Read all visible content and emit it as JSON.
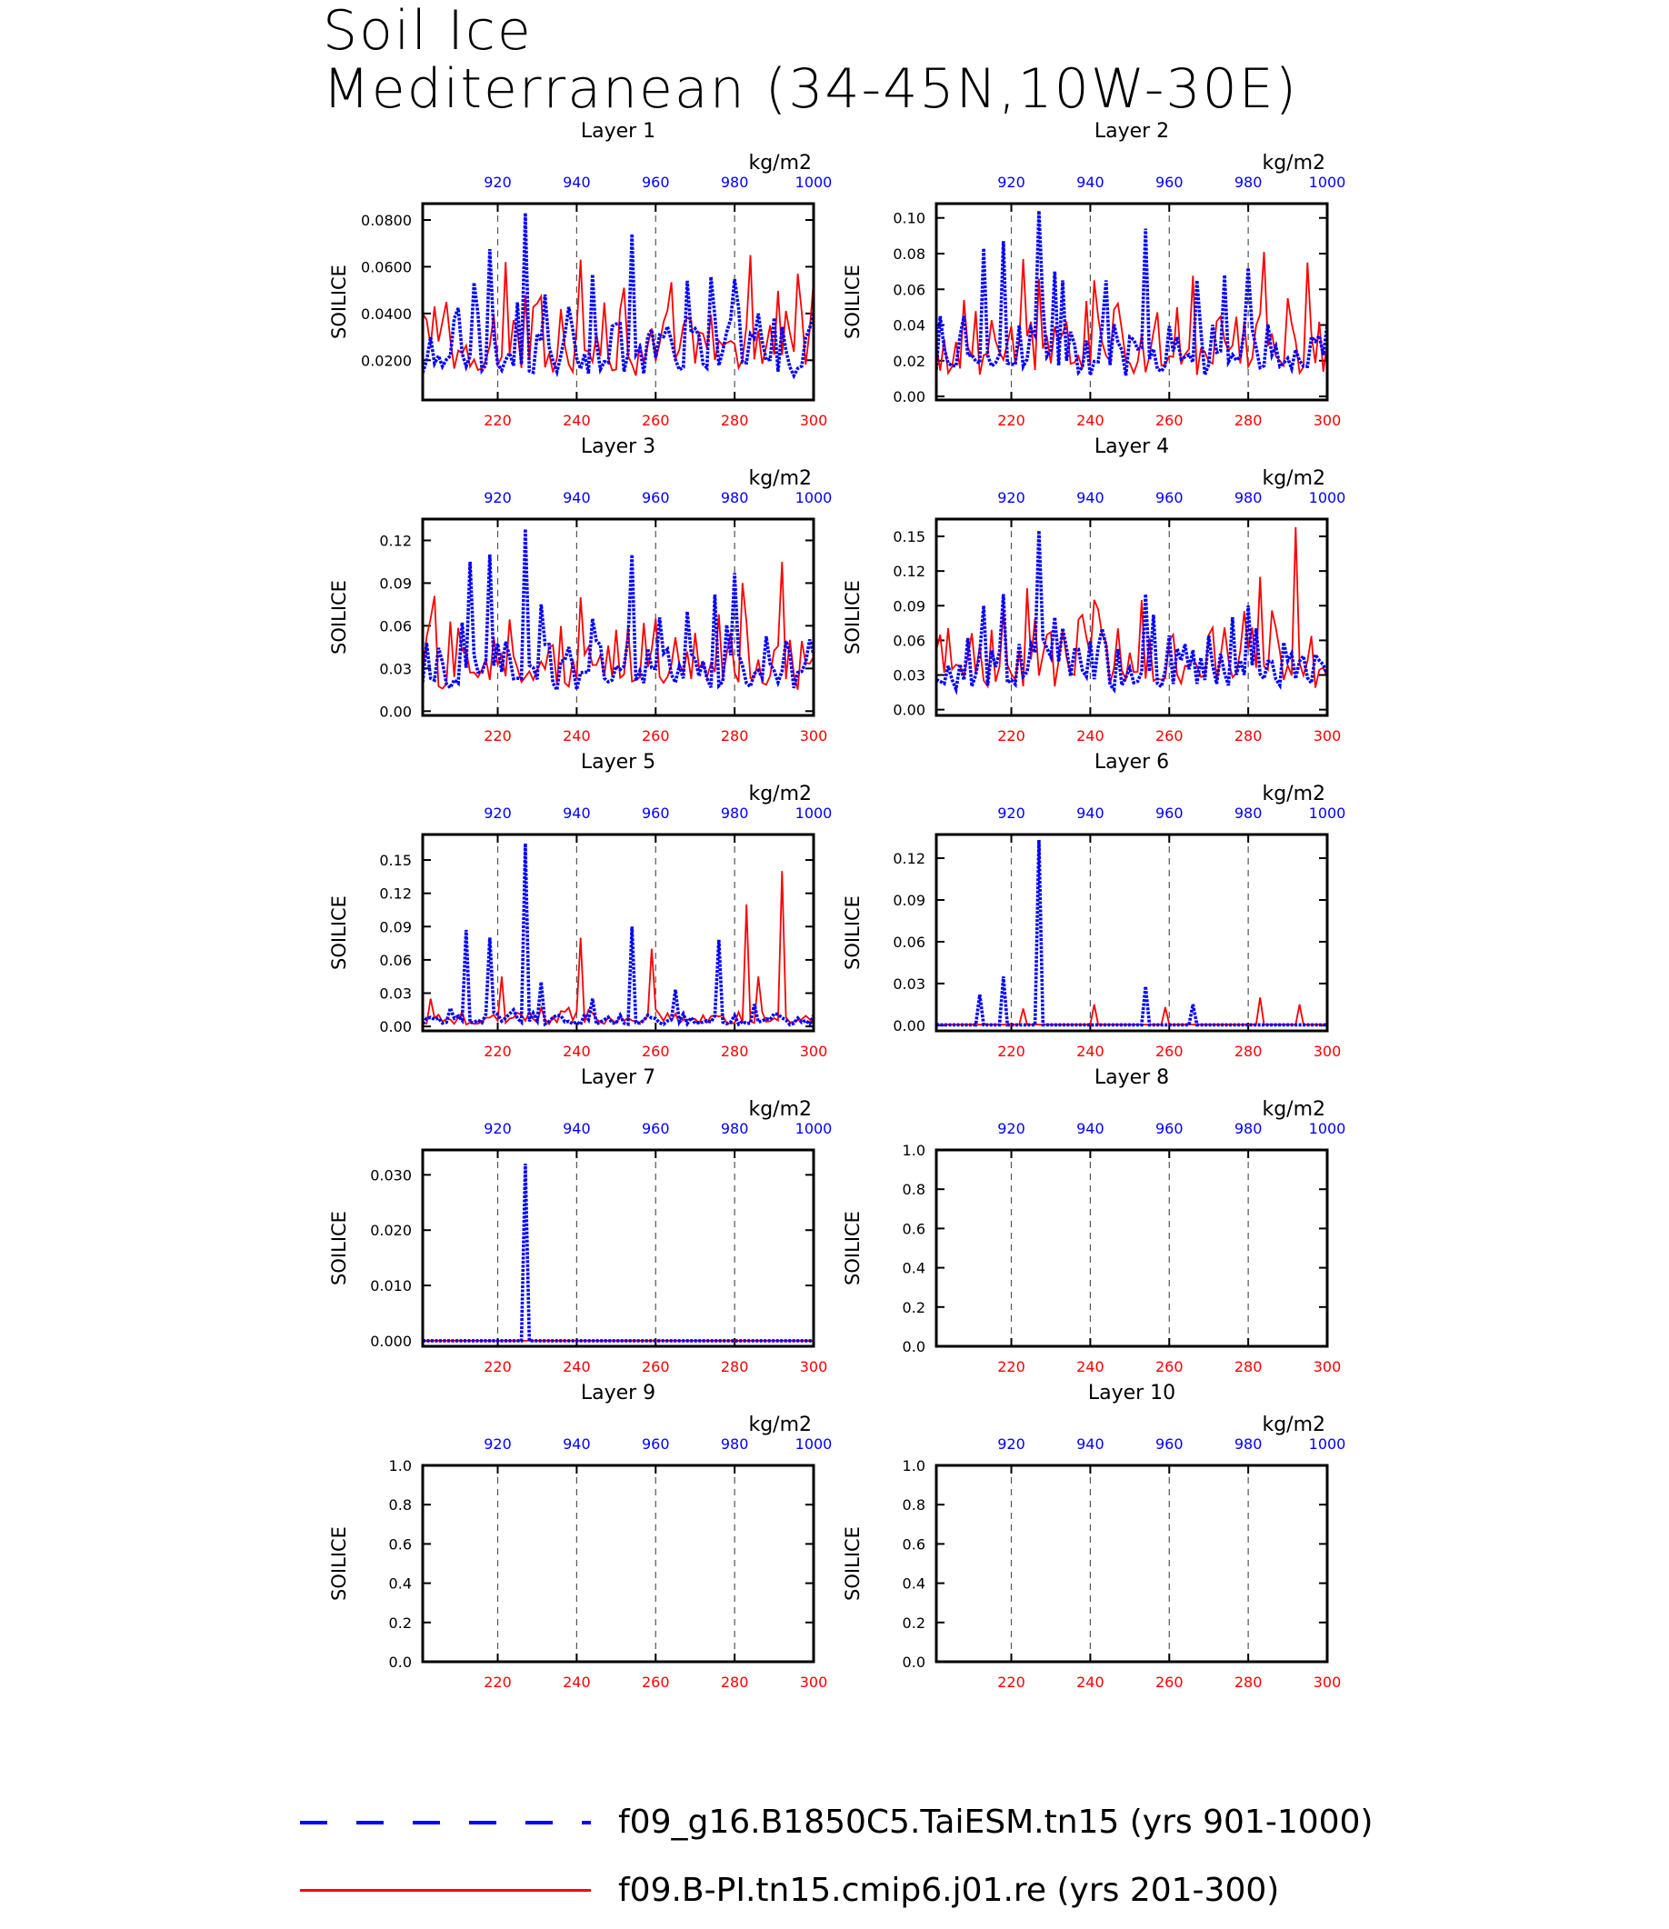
{
  "title": [
    "Soil Ice",
    "Mediterranean (34-45N,10W-30E)"
  ],
  "colors": {
    "model_a": "#0000ff",
    "model_b": "#ff0000",
    "axis": "#000000",
    "grid": "#555555"
  },
  "legend": {
    "items": [
      {
        "label": "f09_g16.B1850C5.TaiESM.tn15 (yrs 901-1000)",
        "color": "#0000ff",
        "style": "dashed"
      },
      {
        "label": "f09.B-PI.tn15.cmip6.j01.re (yrs 201-300)",
        "color": "#ff0000",
        "style": "solid"
      }
    ]
  },
  "chart_data": [
    {
      "type": "line",
      "title": "Layer 1",
      "ylabel": "SOILICE",
      "units": "kg/m2",
      "x_bottom": {
        "range": [
          201,
          300
        ],
        "ticks": [
          220,
          240,
          260,
          280,
          300
        ],
        "color": "#ff0000"
      },
      "x_top": {
        "range": [
          901,
          1000
        ],
        "ticks": [
          920,
          940,
          960,
          980,
          1000
        ],
        "color": "#0000ff"
      },
      "ylim": [
        0.003,
        0.087
      ],
      "yticks": [
        0.02,
        0.04,
        0.06,
        0.08
      ],
      "ytick_labels": [
        "0.0200",
        "0.0400",
        "0.0600",
        "0.0800"
      ],
      "peaks_blue": [
        [
          910,
          0.0423
        ],
        [
          914,
          0.0532
        ],
        [
          918,
          0.0675
        ],
        [
          927,
          0.083
        ],
        [
          932,
          0.0481
        ],
        [
          938,
          0.0428
        ],
        [
          944,
          0.0567
        ],
        [
          954,
          0.074
        ],
        [
          968,
          0.054
        ],
        [
          974,
          0.0557
        ],
        [
          980,
          0.0546
        ],
        [
          986,
          0.04
        ],
        [
          1000,
          0.04
        ]
      ],
      "peaks_red": [
        [
          204,
          0.043
        ],
        [
          207,
          0.045
        ],
        [
          222,
          0.062
        ],
        [
          230,
          0.0443
        ],
        [
          241,
          0.063
        ],
        [
          247,
          0.0447
        ],
        [
          262,
          0.0363
        ],
        [
          284,
          0.065
        ],
        [
          291,
          0.0497
        ],
        [
          296,
          0.057
        ]
      ]
    },
    {
      "type": "line",
      "title": "Layer 2",
      "ylabel": "SOILICE",
      "units": "kg/m2",
      "x_bottom": {
        "range": [
          201,
          300
        ],
        "ticks": [
          220,
          240,
          260,
          280,
          300
        ],
        "color": "#ff0000"
      },
      "x_top": {
        "range": [
          901,
          1000
        ],
        "ticks": [
          920,
          940,
          960,
          980,
          1000
        ],
        "color": "#0000ff"
      },
      "ylim": [
        -0.002,
        0.108
      ],
      "yticks": [
        0.0,
        0.02,
        0.04,
        0.06,
        0.08,
        0.1
      ],
      "ytick_labels": [
        "0.00",
        "0.02",
        "0.04",
        "0.06",
        "0.08",
        "0.10"
      ],
      "peaks_blue": [
        [
          908,
          0.045
        ],
        [
          913,
          0.083
        ],
        [
          918,
          0.087
        ],
        [
          927,
          0.104
        ],
        [
          931,
          0.07
        ],
        [
          933,
          0.065
        ],
        [
          944,
          0.065
        ],
        [
          954,
          0.094
        ],
        [
          967,
          0.065
        ],
        [
          974,
          0.068
        ],
        [
          980,
          0.072
        ],
        [
          1000,
          0.04
        ]
      ],
      "peaks_red": [
        [
          208,
          0.054
        ],
        [
          223,
          0.077
        ],
        [
          241,
          0.065
        ],
        [
          247,
          0.052
        ],
        [
          262,
          0.05
        ],
        [
          284,
          0.081
        ],
        [
          290,
          0.055
        ],
        [
          295,
          0.075
        ]
      ]
    },
    {
      "type": "line",
      "title": "Layer 3",
      "ylabel": "SOILICE",
      "units": "kg/m2",
      "x_bottom": {
        "range": [
          201,
          300
        ],
        "ticks": [
          220,
          240,
          260,
          280,
          300
        ],
        "color": "#ff0000"
      },
      "x_top": {
        "range": [
          901,
          1000
        ],
        "ticks": [
          920,
          940,
          960,
          980,
          1000
        ],
        "color": "#0000ff"
      },
      "ylim": [
        -0.003,
        0.135
      ],
      "yticks": [
        0.0,
        0.03,
        0.06,
        0.09,
        0.12
      ],
      "ytick_labels": [
        "0.00",
        "0.03",
        "0.06",
        "0.09",
        "0.12"
      ],
      "peaks_blue": [
        [
          913,
          0.105
        ],
        [
          918,
          0.11
        ],
        [
          927,
          0.128
        ],
        [
          931,
          0.075
        ],
        [
          938,
          0.045
        ],
        [
          944,
          0.065
        ],
        [
          954,
          0.11
        ],
        [
          968,
          0.07
        ],
        [
          975,
          0.082
        ],
        [
          980,
          0.097
        ],
        [
          1000,
          0.04
        ]
      ],
      "peaks_red": [
        [
          203,
          0.065
        ],
        [
          208,
          0.063
        ],
        [
          221,
          0.04
        ],
        [
          241,
          0.08
        ],
        [
          248,
          0.046
        ],
        [
          260,
          0.065
        ],
        [
          270,
          0.055
        ],
        [
          282,
          0.09
        ],
        [
          292,
          0.105
        ]
      ]
    },
    {
      "type": "line",
      "title": "Layer 4",
      "ylabel": "SOILICE",
      "units": "kg/m2",
      "x_bottom": {
        "range": [
          201,
          300
        ],
        "ticks": [
          220,
          240,
          260,
          280,
          300
        ],
        "color": "#ff0000"
      },
      "x_top": {
        "range": [
          901,
          1000
        ],
        "ticks": [
          920,
          940,
          960,
          980,
          1000
        ],
        "color": "#0000ff"
      },
      "ylim": [
        -0.005,
        0.165
      ],
      "yticks": [
        0.0,
        0.03,
        0.06,
        0.09,
        0.12,
        0.15
      ],
      "ytick_labels": [
        "0.00",
        "0.03",
        "0.06",
        "0.09",
        "0.12",
        "0.15"
      ],
      "peaks_blue": [
        [
          913,
          0.09
        ],
        [
          918,
          0.1
        ],
        [
          927,
          0.155
        ],
        [
          931,
          0.08
        ],
        [
          944,
          0.055
        ],
        [
          954,
          0.1
        ],
        [
          968,
          0.045
        ],
        [
          976,
          0.08
        ],
        [
          980,
          0.09
        ],
        [
          1000,
          0.03
        ]
      ],
      "peaks_red": [
        [
          202,
          0.065
        ],
        [
          224,
          0.105
        ],
        [
          241,
          0.095
        ],
        [
          260,
          0.06
        ],
        [
          283,
          0.115
        ],
        [
          292,
          0.158
        ]
      ]
    },
    {
      "type": "line",
      "title": "Layer 5",
      "ylabel": "SOILICE",
      "units": "kg/m2",
      "x_bottom": {
        "range": [
          201,
          300
        ],
        "ticks": [
          220,
          240,
          260,
          280,
          300
        ],
        "color": "#ff0000"
      },
      "x_top": {
        "range": [
          901,
          1000
        ],
        "ticks": [
          920,
          940,
          960,
          980,
          1000
        ],
        "color": "#0000ff"
      },
      "ylim": [
        -0.004,
        0.173
      ],
      "yticks": [
        0.0,
        0.03,
        0.06,
        0.09,
        0.12,
        0.15
      ],
      "ytick_labels": [
        "0.00",
        "0.03",
        "0.06",
        "0.09",
        "0.12",
        "0.15"
      ],
      "peaks_blue": [
        [
          912,
          0.087
        ],
        [
          918,
          0.08
        ],
        [
          927,
          0.165
        ],
        [
          931,
          0.04
        ],
        [
          944,
          0.025
        ],
        [
          954,
          0.09
        ],
        [
          965,
          0.033
        ],
        [
          976,
          0.078
        ],
        [
          985,
          0.02
        ],
        [
          1000,
          0.01
        ]
      ],
      "peaks_red": [
        [
          203,
          0.025
        ],
        [
          221,
          0.045
        ],
        [
          241,
          0.08
        ],
        [
          259,
          0.07
        ],
        [
          283,
          0.11
        ],
        [
          286,
          0.045
        ],
        [
          292,
          0.14
        ]
      ]
    },
    {
      "type": "line",
      "title": "Layer 6",
      "ylabel": "SOILICE",
      "units": "kg/m2",
      "x_bottom": {
        "range": [
          201,
          300
        ],
        "ticks": [
          220,
          240,
          260,
          280,
          300
        ],
        "color": "#ff0000"
      },
      "x_top": {
        "range": [
          901,
          1000
        ],
        "ticks": [
          920,
          940,
          960,
          980,
          1000
        ],
        "color": "#0000ff"
      },
      "ylim": [
        -0.004,
        0.137
      ],
      "yticks": [
        0.0,
        0.03,
        0.06,
        0.09,
        0.12
      ],
      "ytick_labels": [
        "0.00",
        "0.03",
        "0.06",
        "0.09",
        "0.12"
      ],
      "peaks_blue": [
        [
          912,
          0.022
        ],
        [
          918,
          0.035
        ],
        [
          927,
          0.133
        ],
        [
          954,
          0.028
        ],
        [
          966,
          0.015
        ]
      ],
      "peaks_red": [
        [
          223,
          0.012
        ],
        [
          241,
          0.015
        ],
        [
          259,
          0.013
        ],
        [
          283,
          0.02
        ],
        [
          293,
          0.015
        ]
      ]
    },
    {
      "type": "line",
      "title": "Layer 7",
      "ylabel": "SOILICE",
      "units": "kg/m2",
      "x_bottom": {
        "range": [
          201,
          300
        ],
        "ticks": [
          220,
          240,
          260,
          280,
          300
        ],
        "color": "#ff0000"
      },
      "x_top": {
        "range": [
          901,
          1000
        ],
        "ticks": [
          920,
          940,
          960,
          980,
          1000
        ],
        "color": "#0000ff"
      },
      "ylim": [
        -0.001,
        0.0345
      ],
      "yticks": [
        0.0,
        0.01,
        0.02,
        0.03
      ],
      "ytick_labels": [
        "0.000",
        "0.010",
        "0.020",
        "0.030"
      ],
      "peaks_blue": [
        [
          927,
          0.032
        ]
      ],
      "peaks_red": []
    },
    {
      "type": "line",
      "title": "Layer 8",
      "ylabel": "SOILICE",
      "units": "kg/m2",
      "x_bottom": {
        "range": [
          201,
          300
        ],
        "ticks": [
          220,
          240,
          260,
          280,
          300
        ],
        "color": "#ff0000"
      },
      "x_top": {
        "range": [
          901,
          1000
        ],
        "ticks": [
          920,
          940,
          960,
          980,
          1000
        ],
        "color": "#0000ff"
      },
      "ylim": [
        0.0,
        1.0
      ],
      "yticks": [
        0.0,
        0.2,
        0.4,
        0.6,
        0.8,
        1.0
      ],
      "ytick_labels": [
        "0.0",
        "0.2",
        "0.4",
        "0.6",
        "0.8",
        "1.0"
      ],
      "peaks_blue": [],
      "peaks_red": []
    },
    {
      "type": "line",
      "title": "Layer 9",
      "ylabel": "SOILICE",
      "units": "kg/m2",
      "x_bottom": {
        "range": [
          201,
          300
        ],
        "ticks": [
          220,
          240,
          260,
          280,
          300
        ],
        "color": "#ff0000"
      },
      "x_top": {
        "range": [
          901,
          1000
        ],
        "ticks": [
          920,
          940,
          960,
          980,
          1000
        ],
        "color": "#0000ff"
      },
      "ylim": [
        0.0,
        1.0
      ],
      "yticks": [
        0.0,
        0.2,
        0.4,
        0.6,
        0.8,
        1.0
      ],
      "ytick_labels": [
        "0.0",
        "0.2",
        "0.4",
        "0.6",
        "0.8",
        "1.0"
      ],
      "peaks_blue": [],
      "peaks_red": []
    },
    {
      "type": "line",
      "title": "Layer 10",
      "ylabel": "SOILICE",
      "units": "kg/m2",
      "x_bottom": {
        "range": [
          201,
          300
        ],
        "ticks": [
          220,
          240,
          260,
          280,
          300
        ],
        "color": "#ff0000"
      },
      "x_top": {
        "range": [
          901,
          1000
        ],
        "ticks": [
          920,
          940,
          960,
          980,
          1000
        ],
        "color": "#0000ff"
      },
      "ylim": [
        0.0,
        1.0
      ],
      "yticks": [
        0.0,
        0.2,
        0.4,
        0.6,
        0.8,
        1.0
      ],
      "ytick_labels": [
        "0.0",
        "0.2",
        "0.4",
        "0.6",
        "0.8",
        "1.0"
      ],
      "peaks_blue": [],
      "peaks_red": []
    }
  ]
}
